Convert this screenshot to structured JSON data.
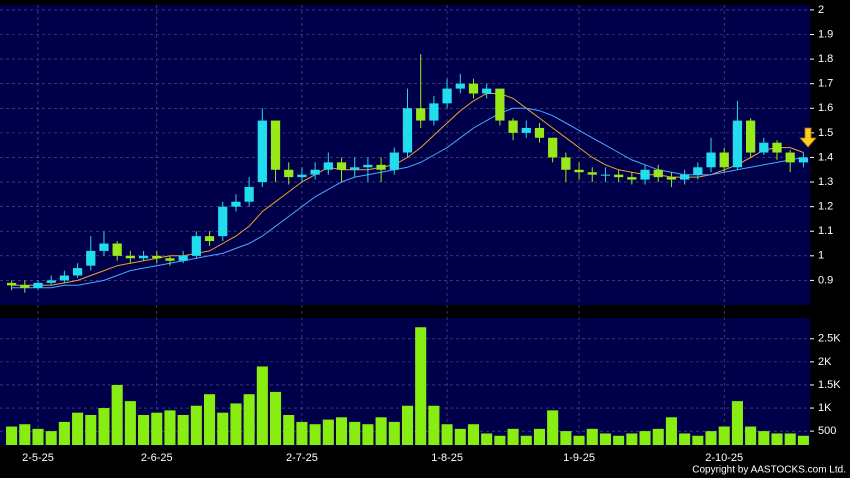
{
  "chart_data": [
    {
      "type": "candlestick",
      "categories": [
        null,
        null,
        "2-5-25",
        null,
        null,
        null,
        null,
        null,
        null,
        null,
        null,
        "2-6-25",
        null,
        null,
        null,
        null,
        null,
        null,
        null,
        null,
        null,
        null,
        "2-7-25",
        null,
        null,
        null,
        null,
        null,
        null,
        null,
        null,
        null,
        null,
        "1-8-25",
        null,
        null,
        null,
        null,
        null,
        null,
        null,
        null,
        null,
        "1-9-25",
        null,
        null,
        null,
        null,
        null,
        null,
        null,
        null,
        null,
        null,
        "2-10-25",
        null,
        null,
        null,
        null,
        null,
        null
      ],
      "open": [
        0.89,
        0.88,
        0.87,
        0.89,
        0.9,
        0.92,
        0.96,
        1.02,
        1.05,
        1.0,
        0.99,
        1.0,
        0.99,
        0.98,
        1.0,
        1.08,
        1.08,
        1.2,
        1.22,
        1.3,
        1.55,
        1.35,
        1.32,
        1.33,
        1.35,
        1.38,
        1.35,
        1.36,
        1.37,
        1.35,
        1.42,
        1.6,
        1.55,
        1.62,
        1.68,
        1.7,
        1.66,
        1.68,
        1.55,
        1.5,
        1.52,
        1.48,
        1.4,
        1.35,
        1.34,
        1.33,
        1.33,
        1.32,
        1.31,
        1.35,
        1.32,
        1.31,
        1.33,
        1.36,
        1.42,
        1.36,
        1.55,
        1.42,
        1.46,
        1.42,
        1.38
      ],
      "high": [
        0.9,
        0.9,
        0.9,
        0.92,
        0.94,
        0.97,
        1.08,
        1.1,
        1.06,
        1.02,
        1.02,
        1.02,
        1.0,
        1.02,
        1.1,
        1.1,
        1.22,
        1.25,
        1.32,
        1.6,
        1.55,
        1.38,
        1.36,
        1.38,
        1.42,
        1.4,
        1.4,
        1.4,
        1.4,
        1.44,
        1.68,
        1.82,
        1.65,
        1.72,
        1.74,
        1.72,
        1.7,
        1.68,
        1.56,
        1.55,
        1.54,
        1.48,
        1.42,
        1.38,
        1.36,
        1.36,
        1.35,
        1.34,
        1.37,
        1.37,
        1.34,
        1.35,
        1.38,
        1.48,
        1.44,
        1.63,
        1.56,
        1.48,
        1.47,
        1.43,
        1.42
      ],
      "low": [
        0.86,
        0.85,
        0.86,
        0.88,
        0.89,
        0.91,
        0.94,
        1.0,
        0.98,
        0.97,
        0.98,
        0.97,
        0.96,
        0.97,
        0.99,
        1.04,
        1.06,
        1.18,
        1.2,
        1.28,
        1.3,
        1.29,
        1.3,
        1.31,
        1.33,
        1.3,
        1.32,
        1.3,
        1.3,
        1.33,
        1.4,
        1.52,
        1.53,
        1.6,
        1.66,
        1.64,
        1.64,
        1.53,
        1.47,
        1.48,
        1.46,
        1.38,
        1.3,
        1.31,
        1.3,
        1.3,
        1.3,
        1.29,
        1.29,
        1.3,
        1.28,
        1.29,
        1.31,
        1.34,
        1.34,
        1.35,
        1.4,
        1.41,
        1.39,
        1.34,
        1.36
      ],
      "close": [
        0.88,
        0.87,
        0.89,
        0.9,
        0.92,
        0.95,
        1.02,
        1.05,
        1.0,
        0.99,
        1.0,
        0.99,
        0.98,
        1.0,
        1.08,
        1.06,
        1.2,
        1.22,
        1.28,
        1.55,
        1.35,
        1.32,
        1.33,
        1.35,
        1.38,
        1.35,
        1.36,
        1.37,
        1.35,
        1.42,
        1.6,
        1.55,
        1.62,
        1.68,
        1.7,
        1.66,
        1.68,
        1.55,
        1.5,
        1.52,
        1.48,
        1.4,
        1.35,
        1.34,
        1.33,
        1.33,
        1.32,
        1.31,
        1.35,
        1.32,
        1.31,
        1.33,
        1.36,
        1.42,
        1.36,
        1.55,
        1.42,
        1.46,
        1.42,
        1.38,
        1.4
      ],
      "up_color": "#22dded",
      "down_color": "#99e81a",
      "series": [
        {
          "color": "#f0a030",
          "values": [
            0.88,
            0.88,
            0.88,
            0.88,
            0.89,
            0.9,
            0.92,
            0.94,
            0.96,
            0.97,
            0.98,
            0.99,
            1.0,
            1.0,
            1.01,
            1.02,
            1.05,
            1.08,
            1.12,
            1.18,
            1.22,
            1.26,
            1.3,
            1.33,
            1.36,
            1.35,
            1.35,
            1.35,
            1.36,
            1.37,
            1.4,
            1.44,
            1.49,
            1.54,
            1.59,
            1.63,
            1.66,
            1.66,
            1.64,
            1.6,
            1.56,
            1.52,
            1.48,
            1.44,
            1.4,
            1.37,
            1.35,
            1.34,
            1.33,
            1.33,
            1.32,
            1.32,
            1.32,
            1.33,
            1.35,
            1.37,
            1.4,
            1.43,
            1.44,
            1.44,
            1.42
          ]
        },
        {
          "color": "#4aa8ff",
          "values": [
            0.87,
            0.87,
            0.87,
            0.87,
            0.88,
            0.88,
            0.89,
            0.9,
            0.92,
            0.94,
            0.95,
            0.96,
            0.97,
            0.98,
            0.99,
            1.0,
            1.01,
            1.03,
            1.05,
            1.08,
            1.12,
            1.16,
            1.2,
            1.24,
            1.27,
            1.3,
            1.32,
            1.33,
            1.34,
            1.35,
            1.36,
            1.38,
            1.41,
            1.44,
            1.48,
            1.52,
            1.55,
            1.58,
            1.6,
            1.6,
            1.59,
            1.57,
            1.54,
            1.51,
            1.48,
            1.45,
            1.42,
            1.39,
            1.37,
            1.35,
            1.34,
            1.33,
            1.33,
            1.33,
            1.34,
            1.35,
            1.36,
            1.37,
            1.38,
            1.39,
            1.4
          ]
        }
      ],
      "ylim": [
        0.8,
        2.02
      ],
      "yticks": [
        0.9,
        1,
        1.1,
        1.2,
        1.3,
        1.4,
        1.5,
        1.6,
        1.7,
        1.8,
        1.9,
        2
      ],
      "grid": true
    },
    {
      "type": "bar",
      "color": "#88ee11",
      "values": [
        600,
        650,
        550,
        500,
        700,
        900,
        850,
        1000,
        1500,
        1150,
        850,
        900,
        950,
        850,
        1050,
        1300,
        900,
        1100,
        1300,
        1900,
        1350,
        850,
        700,
        650,
        750,
        800,
        700,
        650,
        800,
        700,
        1050,
        2750,
        1050,
        650,
        550,
        650,
        450,
        400,
        550,
        400,
        550,
        950,
        500,
        400,
        550,
        450,
        400,
        450,
        500,
        550,
        800,
        450,
        400,
        500,
        600,
        1150,
        600,
        500,
        450,
        450,
        400
      ],
      "ylim": [
        200,
        2950
      ],
      "yticks": [
        500,
        {
          "value": 1000,
          "label": "1K"
        },
        {
          "value": 1500,
          "label": "1.5K"
        },
        {
          "value": 2000,
          "label": "2K"
        },
        {
          "value": 2500,
          "label": "2.5K"
        }
      ],
      "grid": true
    }
  ],
  "copyright": "Copyright by AASTOCKS.com Ltd."
}
